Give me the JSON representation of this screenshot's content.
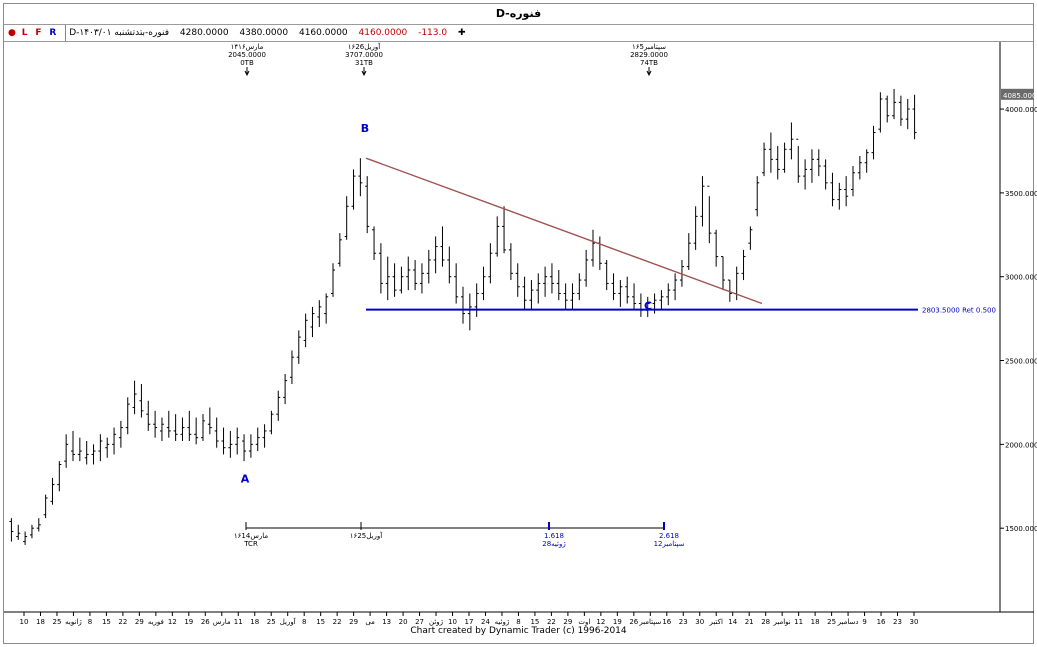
{
  "window_title": "D-فنوره",
  "info_bar": {
    "flags": [
      "L",
      "F",
      "R"
    ],
    "symbol_label": "D-فنوره-بتدتشنبه ۱۴۰۳/۰۱",
    "open": "4280.0000",
    "high": "4380.0000",
    "low": "4160.0000",
    "close": "4160.0000",
    "change": "-113.0",
    "plus_icon": "plus-icon"
  },
  "footer": "Chart created by Dynamic Trader  (c) 1996-2014",
  "chart_data": {
    "type": "bar",
    "title": "D-فنوره",
    "ylim": [
      1000,
      4400
    ],
    "y_ticks": [
      "1500.0000",
      "2000.0000",
      "2500.0000",
      "3000.0000",
      "3500.0000",
      "4000.0000"
    ],
    "y_tick_values": [
      1500,
      2000,
      2500,
      3000,
      3500,
      4000
    ],
    "last_price_label": "4085.0000",
    "x_tick_labels": [
      "10",
      "18",
      "25",
      "ژانویه",
      "8",
      "15",
      "22",
      "29",
      "فوریه",
      "12",
      "19",
      "26",
      "مارس",
      "11",
      "18",
      "25",
      "آوریل",
      "8",
      "15",
      "22",
      "29",
      "می",
      "13",
      "20",
      "27",
      "ژوئن",
      "10",
      "17",
      "24",
      "ژوئیه",
      "8",
      "15",
      "22",
      "29",
      "اوت",
      "12",
      "19",
      "26",
      "سپتامبر",
      "16",
      "23",
      "30",
      "اکتبر",
      "14",
      "21",
      "28",
      "نوامبر",
      "11",
      "18",
      "25",
      "دسامبر",
      "9",
      "16",
      "23",
      "30"
    ],
    "annotations_top": [
      {
        "date": "۱۴مارس۱۶",
        "price": "2045.0000",
        "tb": "0TB"
      },
      {
        "date": "۱۶آوریل26",
        "price": "3707.0000",
        "tb": "31TB"
      },
      {
        "date": "۱۶سپتامبر5",
        "price": "2829.0000",
        "tb": "74TB"
      }
    ],
    "wave_labels": [
      "A",
      "B",
      "C"
    ],
    "wave_values": {
      "A": 1950,
      "B": 3707,
      "C": 2590
    },
    "trendline": {
      "from_value": 3707,
      "to_value": 2840
    },
    "support_level": {
      "value": 2803.5,
      "label": "2803.5000 Ret 0.500"
    },
    "time_ruler": [
      {
        "top": "۱۶مارس14",
        "bottom": "TCR"
      },
      {
        "top": "۱۶آوریل25",
        "bottom": ""
      },
      {
        "top": "1.618",
        "bottom": "28ژوئیه"
      },
      {
        "top": "2.618",
        "bottom": "12سپتامبر"
      }
    ],
    "price_bars": [
      [
        1560,
        1420,
        1540,
        1480
      ],
      [
        1520,
        1430,
        1450,
        1470
      ],
      [
        1480,
        1400,
        1420,
        1450
      ],
      [
        1520,
        1440,
        1460,
        1500
      ],
      [
        1560,
        1480,
        1500,
        1520
      ],
      [
        1700,
        1560,
        1580,
        1680
      ],
      [
        1800,
        1640,
        1660,
        1760
      ],
      [
        1900,
        1720,
        1760,
        1880
      ],
      [
        2060,
        1860,
        1900,
        2000
      ],
      [
        2080,
        1900,
        1960,
        1940
      ],
      [
        2040,
        1900,
        1940,
        1960
      ],
      [
        2020,
        1880,
        1920,
        1940
      ],
      [
        2000,
        1880,
        1940,
        1960
      ],
      [
        2060,
        1900,
        1960,
        2020
      ],
      [
        2040,
        1920,
        1980,
        2000
      ],
      [
        2100,
        1940,
        2000,
        2060
      ],
      [
        2140,
        1980,
        2040,
        2100
      ],
      [
        2280,
        2060,
        2100,
        2240
      ],
      [
        2380,
        2180,
        2220,
        2300
      ],
      [
        2360,
        2160,
        2260,
        2200
      ],
      [
        2260,
        2080,
        2180,
        2120
      ],
      [
        2200,
        2040,
        2120,
        2100
      ],
      [
        2160,
        2020,
        2080,
        2120
      ],
      [
        2200,
        2040,
        2100,
        2080
      ],
      [
        2180,
        2020,
        2080,
        2060
      ],
      [
        2160,
        2020,
        2060,
        2100
      ],
      [
        2200,
        2020,
        2100,
        2060
      ],
      [
        2160,
        2000,
        2060,
        2040
      ],
      [
        2180,
        2020,
        2040,
        2140
      ],
      [
        2220,
        2060,
        2120,
        2100
      ],
      [
        2160,
        1980,
        2080,
        2020
      ],
      [
        2100,
        1940,
        2020,
        1980
      ],
      [
        2080,
        1920,
        1980,
        2000
      ],
      [
        2100,
        1940,
        2000,
        2040
      ],
      [
        2060,
        1900,
        2020,
        1960
      ],
      [
        2060,
        1920,
        1960,
        2000
      ],
      [
        2100,
        1960,
        2000,
        2040
      ],
      [
        2120,
        1980,
        2040,
        2080
      ],
      [
        2200,
        2060,
        2080,
        2180
      ],
      [
        2320,
        2140,
        2180,
        2280
      ],
      [
        2420,
        2240,
        2280,
        2380
      ],
      [
        2560,
        2360,
        2400,
        2520
      ],
      [
        2680,
        2480,
        2520,
        2640
      ],
      [
        2780,
        2580,
        2620,
        2740
      ],
      [
        2820,
        2640,
        2700,
        2780
      ],
      [
        2860,
        2700,
        2760,
        2820
      ],
      [
        2900,
        2720,
        2780,
        2880
      ],
      [
        3080,
        2880,
        2900,
        3040
      ],
      [
        3260,
        3060,
        3080,
        3220
      ],
      [
        3480,
        3220,
        3240,
        3420
      ],
      [
        3640,
        3400,
        3420,
        3600
      ],
      [
        3707,
        3480,
        3600,
        3560
      ],
      [
        3600,
        3260,
        3540,
        3300
      ],
      [
        3300,
        3100,
        3280,
        3140
      ],
      [
        3200,
        2900,
        3140,
        2960
      ],
      [
        3120,
        2860,
        2960,
        3000
      ],
      [
        3080,
        2880,
        3000,
        2920
      ],
      [
        3060,
        2900,
        2920,
        3000
      ],
      [
        3120,
        2920,
        3000,
        3040
      ],
      [
        3100,
        2920,
        3040,
        2960
      ],
      [
        3080,
        2900,
        2960,
        3020
      ],
      [
        3160,
        2960,
        3020,
        3100
      ],
      [
        3240,
        3020,
        3100,
        3180
      ],
      [
        3300,
        3060,
        3180,
        3100
      ],
      [
        3180,
        2960,
        3100,
        3000
      ],
      [
        3080,
        2840,
        3000,
        2880
      ],
      [
        2940,
        2720,
        2880,
        2780
      ],
      [
        2900,
        2680,
        2780,
        2820
      ],
      [
        2960,
        2760,
        2820,
        2900
      ],
      [
        3060,
        2860,
        2900,
        3000
      ],
      [
        3200,
        2960,
        3000,
        3140
      ],
      [
        3360,
        3120,
        3140,
        3300
      ],
      [
        3420,
        3140,
        3300,
        3160
      ],
      [
        3200,
        2980,
        3160,
        3020
      ],
      [
        3080,
        2880,
        3020,
        2940
      ],
      [
        3000,
        2800,
        2940,
        2860
      ],
      [
        2980,
        2800,
        2860,
        2920
      ],
      [
        3020,
        2840,
        2920,
        2960
      ],
      [
        3060,
        2880,
        2960,
        3000
      ],
      [
        3080,
        2900,
        3000,
        2960
      ],
      [
        3040,
        2860,
        2960,
        2900
      ],
      [
        2960,
        2800,
        2900,
        2860
      ],
      [
        2960,
        2800,
        2860,
        2900
      ],
      [
        3020,
        2860,
        2900,
        2980
      ],
      [
        3160,
        2940,
        2980,
        3100
      ],
      [
        3280,
        3060,
        3100,
        3200
      ],
      [
        3240,
        3040,
        3200,
        3080
      ],
      [
        3100,
        2920,
        3080,
        2960
      ],
      [
        3020,
        2860,
        2960,
        2900
      ],
      [
        2980,
        2820,
        2900,
        2940
      ],
      [
        3000,
        2840,
        2940,
        2880
      ],
      [
        2960,
        2800,
        2880,
        2840
      ],
      [
        2900,
        2760,
        2840,
        2800
      ],
      [
        2880,
        2760,
        2800,
        2840
      ],
      [
        2900,
        2780,
        2840,
        2860
      ],
      [
        2920,
        2800,
        2860,
        2880
      ],
      [
        2960,
        2830,
        2880,
        2920
      ],
      [
        3020,
        2860,
        2920,
        2980
      ],
      [
        3100,
        2940,
        2980,
        3060
      ],
      [
        3260,
        3040,
        3060,
        3200
      ],
      [
        3420,
        3160,
        3200,
        3360
      ],
      [
        3600,
        3300,
        3360,
        3540
      ],
      [
        3480,
        3200,
        3540,
        3260
      ],
      [
        3280,
        3060,
        3260,
        3120
      ],
      [
        3120,
        2920,
        3120,
        2980
      ],
      [
        2980,
        2850,
        2980,
        2900
      ],
      [
        3060,
        2860,
        2900,
        3020
      ],
      [
        3160,
        2980,
        3020,
        3120
      ],
      [
        3300,
        3160,
        3200,
        3280
      ],
      [
        3600,
        3360,
        3400,
        3560
      ],
      [
        3800,
        3600,
        3620,
        3760
      ],
      [
        3860,
        3620,
        3760,
        3700
      ],
      [
        3780,
        3580,
        3700,
        3640
      ],
      [
        3800,
        3620,
        3640,
        3760
      ],
      [
        3920,
        3700,
        3760,
        3820
      ],
      [
        3780,
        3560,
        3820,
        3600
      ],
      [
        3700,
        3520,
        3600,
        3640
      ],
      [
        3760,
        3560,
        3640,
        3700
      ],
      [
        3760,
        3600,
        3700,
        3660
      ],
      [
        3700,
        3520,
        3660,
        3560
      ],
      [
        3620,
        3420,
        3560,
        3460
      ],
      [
        3560,
        3400,
        3460,
        3520
      ],
      [
        3600,
        3420,
        3520,
        3480
      ],
      [
        3660,
        3480,
        3520,
        3620
      ],
      [
        3720,
        3580,
        3620,
        3680
      ],
      [
        3760,
        3620,
        3680,
        3740
      ],
      [
        3900,
        3700,
        3740,
        3860
      ],
      [
        4100,
        3860,
        3880,
        4060
      ],
      [
        4080,
        3920,
        4060,
        3960
      ],
      [
        4120,
        3940,
        3960,
        4040
      ],
      [
        4080,
        3900,
        4040,
        3940
      ],
      [
        4060,
        3880,
        3940,
        4000
      ],
      [
        4085,
        3820,
        4000,
        3860
      ]
    ]
  }
}
